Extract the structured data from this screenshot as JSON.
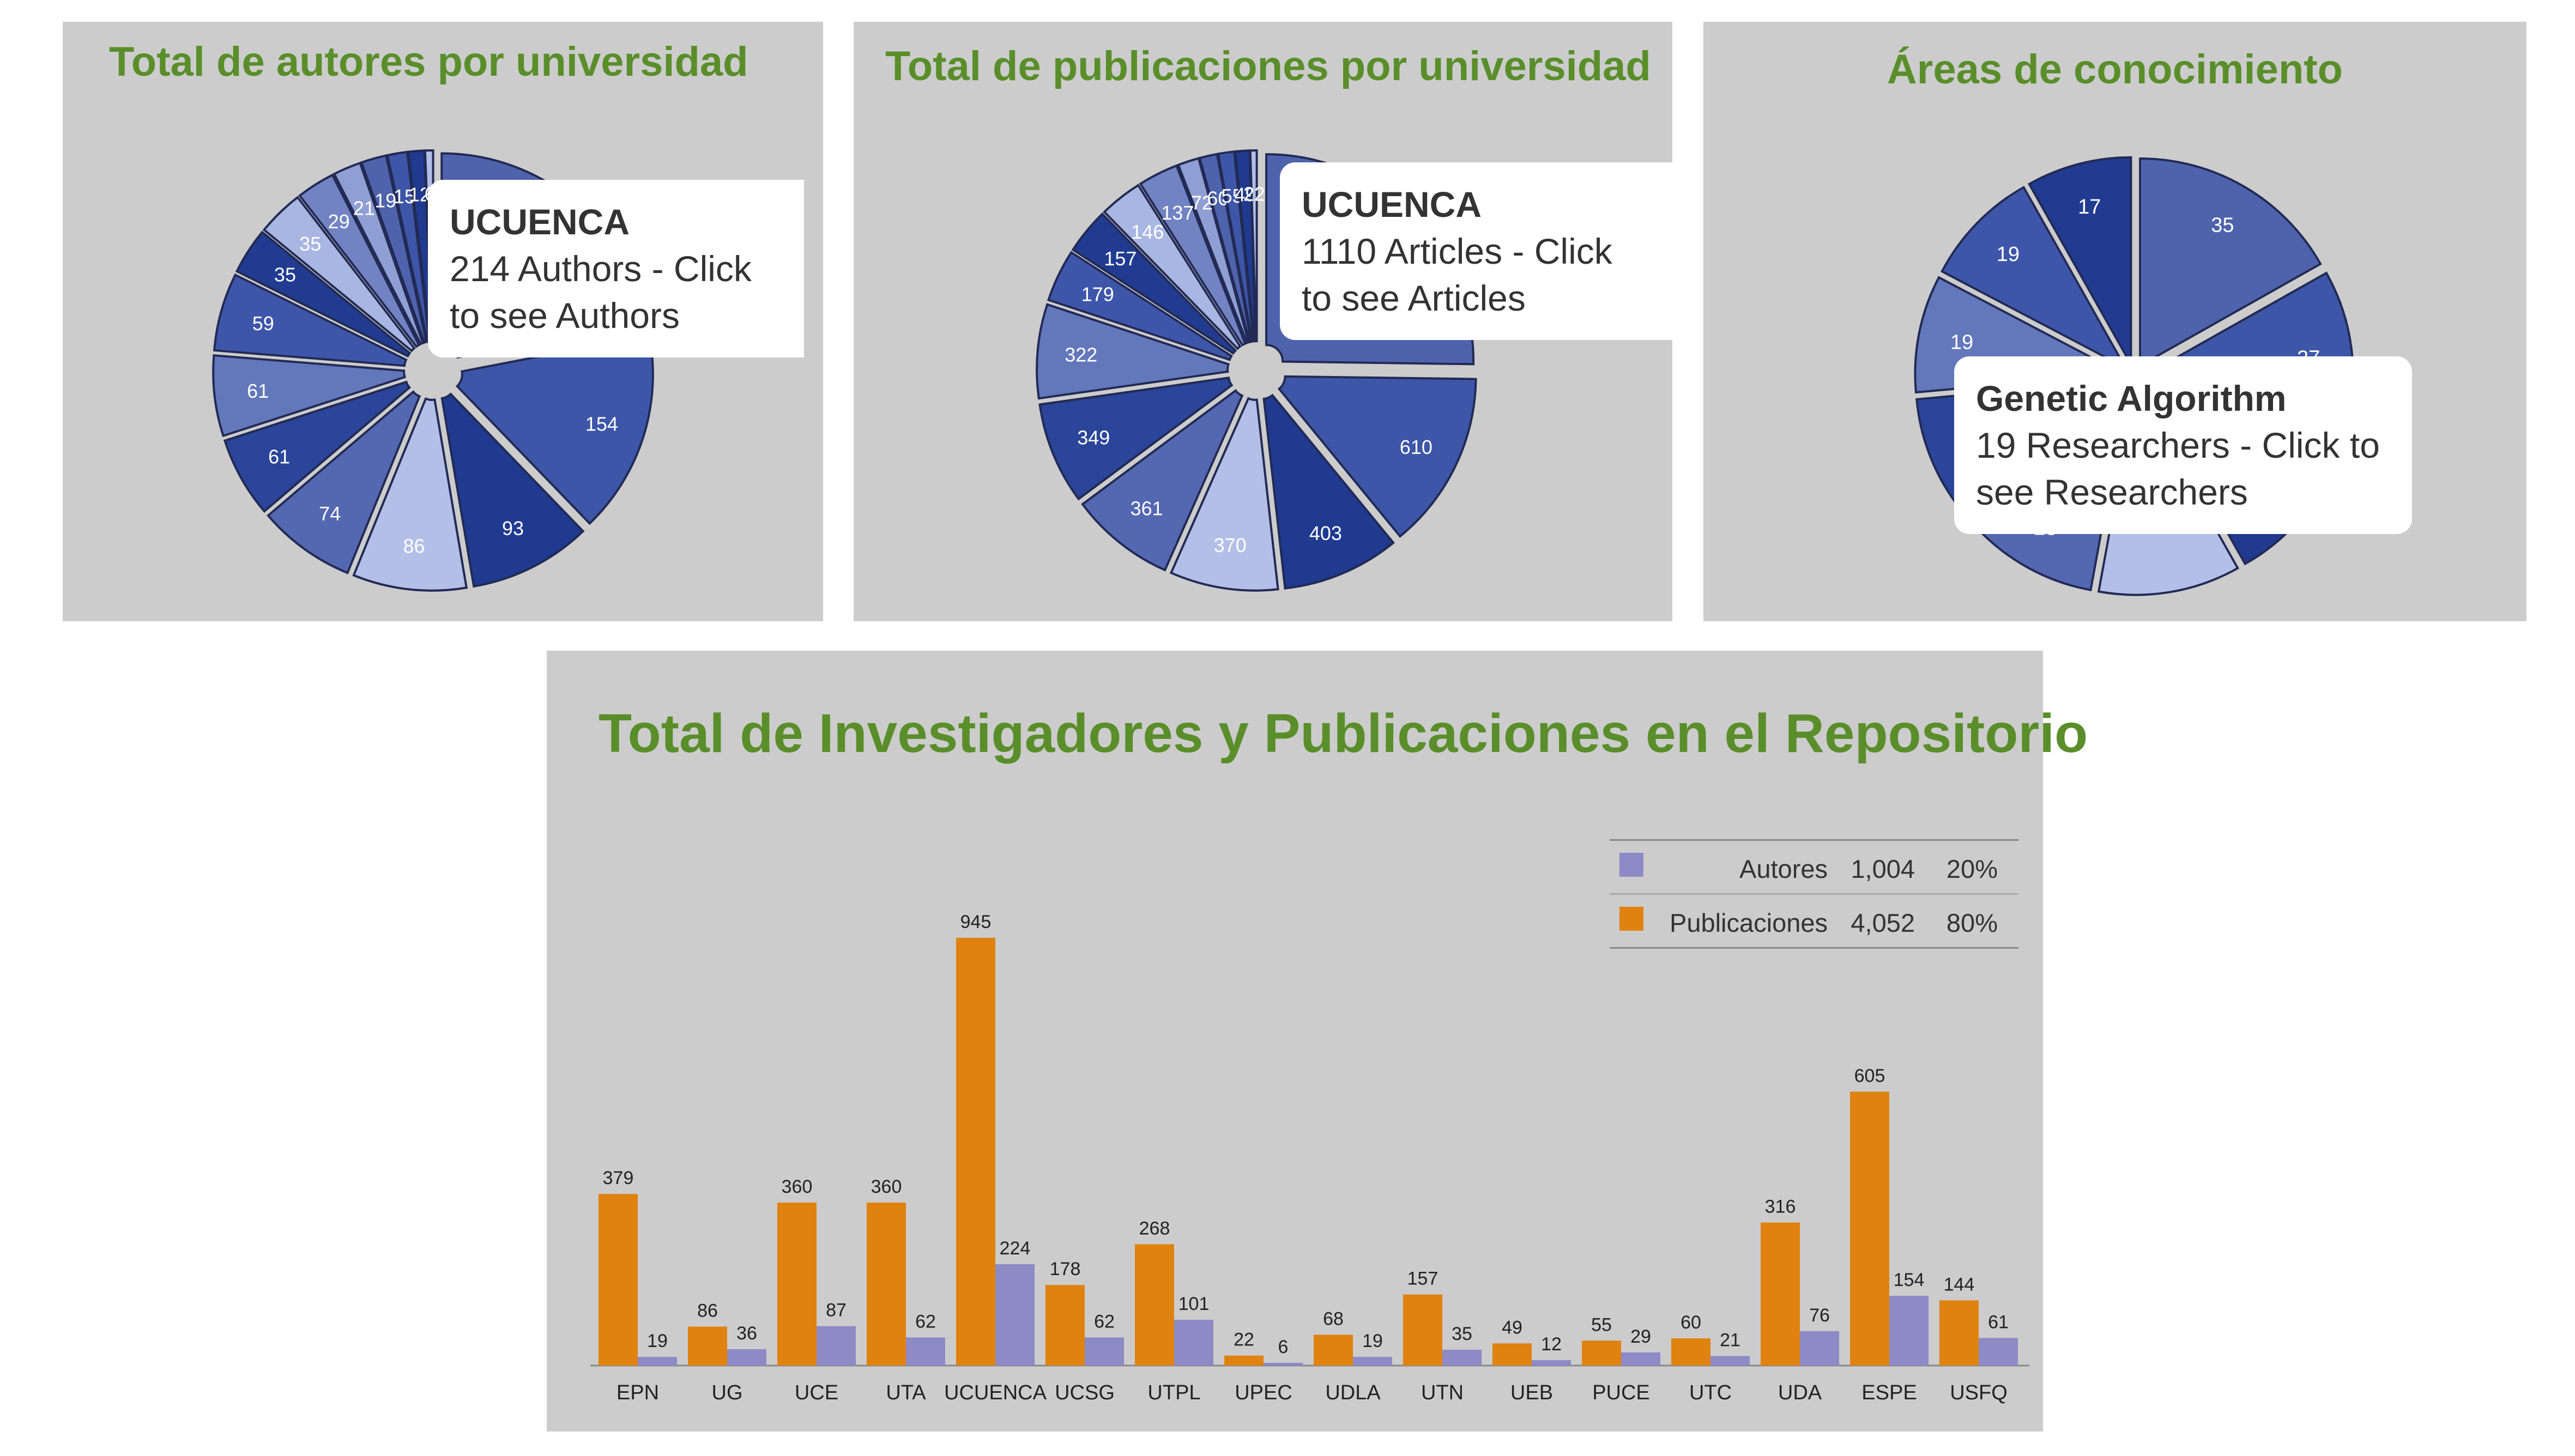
{
  "panels": [
    {
      "id": "p1",
      "title": "Total de autores por universidad",
      "tooltip": {
        "heading": "UCUENCA",
        "text": "214 Authors - Click to see Authors"
      }
    },
    {
      "id": "p2",
      "title": "Total de publicaciones por universidad",
      "tooltip": {
        "heading": "UCUENCA",
        "text": "1110 Articles - Click to see Articles"
      }
    },
    {
      "id": "p3",
      "title": "Áreas de conocimiento",
      "tooltip": {
        "heading": "Genetic Algorithm",
        "text": "19 Researchers - Click to see Researchers"
      }
    },
    {
      "id": "p4",
      "title": "Total de Investigadores y Publicaciones en el Repositorio"
    }
  ],
  "colors": {
    "panel_bg": "#cccccc",
    "title": "#5a8e2a",
    "orange": "#e0820f",
    "purple": "#8d8ac6",
    "pie_palette": [
      "#4f63ad",
      "#3d56a8",
      "#1f3a8f",
      "#b3bfe6",
      "#5467b1",
      "#2a4599",
      "#6377bb",
      "#3e56aa",
      "#213b91",
      "#a9b6e2",
      "#7183c2",
      "#8f9fd3"
    ]
  },
  "chart_data": [
    {
      "type": "pie",
      "title": "Total de autores por universidad",
      "values": [
        214,
        154,
        93,
        86,
        74,
        61,
        61,
        59,
        35,
        35,
        29,
        21,
        19,
        15,
        12,
        6
      ],
      "labels": [
        "",
        "154",
        "93",
        "86",
        "74",
        "61",
        "61",
        "59",
        "35",
        "35",
        "29",
        "21",
        "19",
        "15",
        "12",
        "6"
      ],
      "highlight": "UCUENCA",
      "highlight_value": 214
    },
    {
      "type": "pie",
      "title": "Total de publicaciones por universidad",
      "values": [
        1110,
        610,
        403,
        370,
        361,
        349,
        322,
        179,
        157,
        146,
        137,
        72,
        60,
        55,
        49,
        22
      ],
      "labels": [
        "",
        "610",
        "403",
        "370",
        "361",
        "349",
        "322",
        "179",
        "157",
        "146",
        "137",
        "72",
        "60",
        "55",
        "49",
        "22"
      ],
      "highlight": "UCUENCA",
      "highlight_value": 1110
    },
    {
      "type": "pie",
      "title": "Áreas de conocimiento",
      "values": [
        35,
        27,
        25,
        23,
        23,
        20,
        19,
        19,
        17
      ],
      "labels": [
        "35",
        "27",
        "",
        "",
        "23",
        "",
        "19",
        "19",
        "17"
      ],
      "highlight": "Genetic Algorithm",
      "highlight_value": 19
    },
    {
      "type": "bar",
      "title": "Total de Investigadores y Publicaciones en el Repositorio",
      "categories": [
        "EPN",
        "UG",
        "UCE",
        "UTA",
        "UCUENCA",
        "UCSG",
        "UTPL",
        "UPEC",
        "UDLA",
        "UTN",
        "UEB",
        "PUCE",
        "UTC",
        "UDA",
        "ESPE",
        "USFQ"
      ],
      "series": [
        {
          "name": "Publicaciones",
          "values": [
            379,
            86,
            360,
            360,
            945,
            178,
            268,
            22,
            68,
            157,
            49,
            55,
            60,
            316,
            605,
            144
          ]
        },
        {
          "name": "Autores",
          "values": [
            19,
            36,
            87,
            62,
            224,
            62,
            101,
            6,
            19,
            35,
            12,
            29,
            21,
            76,
            154,
            61
          ]
        }
      ],
      "ylim": [
        0,
        945
      ],
      "legend": [
        {
          "name": "Autores",
          "total": "1,004",
          "pct": "20%"
        },
        {
          "name": "Publicaciones",
          "total": "4,052",
          "pct": "80%"
        }
      ],
      "legend_position": "top-right",
      "grid": false
    }
  ]
}
